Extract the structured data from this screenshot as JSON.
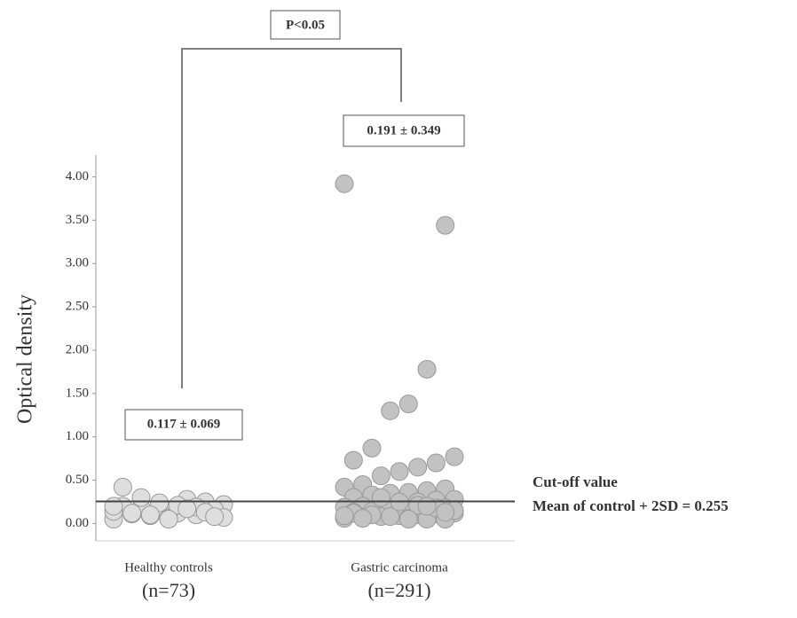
{
  "chart_data": {
    "type": "scatter",
    "ylabel": "Optical density",
    "ylim": [
      -0.2,
      4.25
    ],
    "yticks": [
      {
        "value": 0,
        "label": "0.00"
      },
      {
        "value": 0.5,
        "label": "0.50"
      },
      {
        "value": 1,
        "label": "1.00"
      },
      {
        "value": 1.5,
        "label": "1.50"
      },
      {
        "value": 2,
        "label": "2.00"
      },
      {
        "value": 2.5,
        "label": "2.50"
      },
      {
        "value": 3,
        "label": "3.00"
      },
      {
        "value": 3.5,
        "label": "3.50"
      },
      {
        "value": 4,
        "label": "4.00"
      }
    ],
    "groups": [
      {
        "name": "Healthy controls",
        "n_label": "(n=73)",
        "color": "#dedede",
        "stat": "0.117 ± 0.069",
        "values": [
          0.05,
          0.08,
          0.1,
          0.12,
          0.15,
          0.18,
          0.2,
          0.22,
          0.25,
          0.28,
          0.06,
          0.09,
          0.11,
          0.14,
          0.16,
          0.19,
          0.21,
          0.24,
          0.3,
          0.42,
          0.07,
          0.13,
          0.17,
          0.05,
          0.1,
          0.12,
          0.2,
          0.08
        ]
      },
      {
        "name": "Gastric carcinoma",
        "n_label": "(n=291)",
        "color": "#c2c2c2",
        "stat": "0.191 ± 0.349",
        "values": [
          3.92,
          3.44,
          1.78,
          1.38,
          1.3,
          0.87,
          0.73,
          0.77,
          0.7,
          0.65,
          0.6,
          0.55,
          0.45,
          0.42,
          0.4,
          0.38,
          0.36,
          0.35,
          0.33,
          0.3,
          0.28,
          0.27,
          0.25,
          0.24,
          0.22,
          0.2,
          0.19,
          0.18,
          0.17,
          0.16,
          0.15,
          0.14,
          0.13,
          0.12,
          0.11,
          0.1,
          0.09,
          0.08,
          0.07,
          0.06,
          0.05,
          0.05,
          0.06,
          0.08,
          0.1,
          0.12,
          0.15,
          0.18,
          0.21,
          0.25,
          0.3,
          0.06,
          0.09,
          0.13,
          0.2,
          0.05
        ]
      }
    ],
    "annotations": {
      "p_value": "P<0.05",
      "cutoff_title": "Cut-off value",
      "cutoff_label": "Mean of control + 2SD = 0.255"
    },
    "cutoff": 0.255
  }
}
